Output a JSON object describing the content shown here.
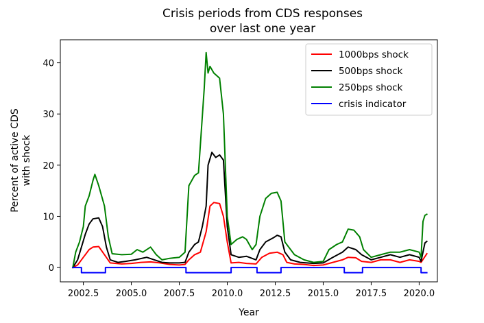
{
  "chart_data": {
    "type": "line",
    "title_lines": [
      "Crisis periods from CDS responses",
      "over last one year"
    ],
    "xlabel": "Year",
    "ylabel_lines": [
      "Percent of active CDS",
      "with shock"
    ],
    "xlim": [
      2001.3,
      2020.95
    ],
    "ylim": [
      -2.8,
      44.5
    ],
    "x_ticks": [
      2002.5,
      2005.0,
      2007.5,
      2010.0,
      2012.5,
      2015.0,
      2017.5,
      2020.0
    ],
    "x_tick_labels": [
      "2002.5",
      "2005.0",
      "2007.5",
      "2010.0",
      "2012.5",
      "2015.0",
      "2017.5",
      "2020.0"
    ],
    "y_ticks": [
      0,
      10,
      20,
      30,
      40
    ],
    "y_tick_labels": [
      "0",
      "10",
      "20",
      "30",
      "40"
    ],
    "legend_position": "top-right",
    "series": [
      {
        "name": "1000bps shock",
        "color": "#ff0000",
        "points": [
          [
            2001.95,
            0
          ],
          [
            2002.2,
            0.5
          ],
          [
            2002.5,
            2.0
          ],
          [
            2002.8,
            3.5
          ],
          [
            2003.0,
            4.0
          ],
          [
            2003.3,
            4.1
          ],
          [
            2003.6,
            2.5
          ],
          [
            2003.9,
            0.9
          ],
          [
            2004.5,
            0.7
          ],
          [
            2005.0,
            0.8
          ],
          [
            2005.5,
            1.0
          ],
          [
            2006.0,
            1.1
          ],
          [
            2006.5,
            0.9
          ],
          [
            2007.0,
            0.6
          ],
          [
            2007.5,
            0.5
          ],
          [
            2007.8,
            0.6
          ],
          [
            2008.0,
            1.5
          ],
          [
            2008.3,
            2.5
          ],
          [
            2008.6,
            3.0
          ],
          [
            2008.9,
            7.0
          ],
          [
            2009.1,
            12.0
          ],
          [
            2009.3,
            12.7
          ],
          [
            2009.6,
            12.5
          ],
          [
            2009.8,
            10.0
          ],
          [
            2010.0,
            5.0
          ],
          [
            2010.2,
            0.9
          ],
          [
            2010.6,
            1.0
          ],
          [
            2011.0,
            0.8
          ],
          [
            2011.5,
            0.7
          ],
          [
            2011.8,
            2.0
          ],
          [
            2012.2,
            2.8
          ],
          [
            2012.6,
            3.0
          ],
          [
            2012.9,
            2.5
          ],
          [
            2013.1,
            1.0
          ],
          [
            2013.5,
            0.7
          ],
          [
            2014.0,
            0.6
          ],
          [
            2014.5,
            0.4
          ],
          [
            2015.0,
            0.5
          ],
          [
            2015.5,
            1.0
          ],
          [
            2016.0,
            1.5
          ],
          [
            2016.3,
            2.0
          ],
          [
            2016.7,
            1.9
          ],
          [
            2017.0,
            1.2
          ],
          [
            2017.5,
            1.0
          ],
          [
            2018.0,
            1.5
          ],
          [
            2018.5,
            1.5
          ],
          [
            2019.0,
            1.0
          ],
          [
            2019.5,
            1.5
          ],
          [
            2020.0,
            1.2
          ],
          [
            2020.1,
            1.0
          ],
          [
            2020.4,
            2.7
          ]
        ]
      },
      {
        "name": "500bps shock",
        "color": "#000000",
        "points": [
          [
            2001.95,
            0
          ],
          [
            2002.2,
            1.5
          ],
          [
            2002.4,
            4.0
          ],
          [
            2002.6,
            6.5
          ],
          [
            2002.8,
            8.5
          ],
          [
            2003.0,
            9.5
          ],
          [
            2003.3,
            9.7
          ],
          [
            2003.5,
            8.0
          ],
          [
            2003.7,
            4.0
          ],
          [
            2003.9,
            1.5
          ],
          [
            2004.3,
            1.0
          ],
          [
            2004.7,
            1.2
          ],
          [
            2005.2,
            1.5
          ],
          [
            2005.8,
            2.0
          ],
          [
            2006.2,
            1.5
          ],
          [
            2006.6,
            1.0
          ],
          [
            2007.0,
            0.9
          ],
          [
            2007.5,
            0.9
          ],
          [
            2007.8,
            1.0
          ],
          [
            2008.0,
            3.0
          ],
          [
            2008.3,
            4.5
          ],
          [
            2008.5,
            5.0
          ],
          [
            2008.7,
            8.0
          ],
          [
            2008.9,
            12.0
          ],
          [
            2009.0,
            20.0
          ],
          [
            2009.2,
            22.5
          ],
          [
            2009.4,
            21.5
          ],
          [
            2009.6,
            22.0
          ],
          [
            2009.8,
            21.0
          ],
          [
            2010.0,
            8.0
          ],
          [
            2010.2,
            2.5
          ],
          [
            2010.6,
            2.0
          ],
          [
            2011.0,
            2.2
          ],
          [
            2011.5,
            1.5
          ],
          [
            2011.7,
            3.5
          ],
          [
            2012.0,
            5.0
          ],
          [
            2012.4,
            5.8
          ],
          [
            2012.6,
            6.3
          ],
          [
            2012.8,
            6.0
          ],
          [
            2013.0,
            3.0
          ],
          [
            2013.3,
            1.5
          ],
          [
            2013.8,
            1.0
          ],
          [
            2014.5,
            0.8
          ],
          [
            2015.0,
            0.9
          ],
          [
            2015.5,
            2.0
          ],
          [
            2016.0,
            3.0
          ],
          [
            2016.3,
            4.0
          ],
          [
            2016.7,
            3.5
          ],
          [
            2017.0,
            2.5
          ],
          [
            2017.5,
            1.5
          ],
          [
            2018.0,
            2.0
          ],
          [
            2018.5,
            2.5
          ],
          [
            2019.0,
            2.0
          ],
          [
            2019.5,
            2.5
          ],
          [
            2020.0,
            2.0
          ],
          [
            2020.1,
            1.2
          ],
          [
            2020.3,
            4.8
          ],
          [
            2020.4,
            5.1
          ]
        ]
      },
      {
        "name": "250bps shock",
        "color": "#008000",
        "points": [
          [
            2001.95,
            0
          ],
          [
            2002.1,
            3.0
          ],
          [
            2002.3,
            5.0
          ],
          [
            2002.5,
            8.0
          ],
          [
            2002.6,
            12.0
          ],
          [
            2002.8,
            14.0
          ],
          [
            2003.0,
            17.0
          ],
          [
            2003.1,
            18.2
          ],
          [
            2003.3,
            16.0
          ],
          [
            2003.6,
            12.0
          ],
          [
            2003.8,
            6.0
          ],
          [
            2004.0,
            2.7
          ],
          [
            2004.5,
            2.5
          ],
          [
            2005.0,
            2.6
          ],
          [
            2005.3,
            3.5
          ],
          [
            2005.6,
            3.0
          ],
          [
            2006.0,
            4.0
          ],
          [
            2006.3,
            2.5
          ],
          [
            2006.6,
            1.5
          ],
          [
            2007.0,
            1.8
          ],
          [
            2007.5,
            2.0
          ],
          [
            2007.8,
            3.0
          ],
          [
            2008.0,
            16.0
          ],
          [
            2008.3,
            18.0
          ],
          [
            2008.5,
            18.5
          ],
          [
            2008.6,
            24.0
          ],
          [
            2008.8,
            35.0
          ],
          [
            2008.9,
            42.0
          ],
          [
            2009.0,
            38.0
          ],
          [
            2009.1,
            39.3
          ],
          [
            2009.3,
            38.0
          ],
          [
            2009.6,
            37.0
          ],
          [
            2009.8,
            30.0
          ],
          [
            2010.0,
            10.0
          ],
          [
            2010.2,
            4.5
          ],
          [
            2010.5,
            5.5
          ],
          [
            2010.8,
            6.0
          ],
          [
            2011.0,
            5.5
          ],
          [
            2011.3,
            3.5
          ],
          [
            2011.5,
            4.5
          ],
          [
            2011.7,
            10.0
          ],
          [
            2012.0,
            13.5
          ],
          [
            2012.3,
            14.5
          ],
          [
            2012.6,
            14.7
          ],
          [
            2012.8,
            13.0
          ],
          [
            2013.0,
            5.0
          ],
          [
            2013.5,
            2.5
          ],
          [
            2014.0,
            1.5
          ],
          [
            2014.5,
            1.0
          ],
          [
            2015.0,
            1.2
          ],
          [
            2015.3,
            3.5
          ],
          [
            2015.7,
            4.5
          ],
          [
            2016.0,
            5.0
          ],
          [
            2016.3,
            7.5
          ],
          [
            2016.6,
            7.3
          ],
          [
            2016.9,
            6.0
          ],
          [
            2017.1,
            3.5
          ],
          [
            2017.5,
            2.0
          ],
          [
            2018.0,
            2.5
          ],
          [
            2018.5,
            3.0
          ],
          [
            2019.0,
            3.0
          ],
          [
            2019.5,
            3.5
          ],
          [
            2019.8,
            3.2
          ],
          [
            2020.0,
            3.0
          ],
          [
            2020.1,
            2.0
          ],
          [
            2020.2,
            9.0
          ],
          [
            2020.3,
            10.2
          ],
          [
            2020.4,
            10.4
          ]
        ]
      },
      {
        "name": "crisis indicator",
        "color": "#0000ff",
        "points": [
          [
            2001.95,
            0
          ],
          [
            2002.4,
            0
          ],
          [
            2002.4,
            -1
          ],
          [
            2003.65,
            -1
          ],
          [
            2003.65,
            0
          ],
          [
            2007.85,
            0
          ],
          [
            2007.85,
            -1
          ],
          [
            2010.2,
            -1
          ],
          [
            2010.2,
            0
          ],
          [
            2011.55,
            0
          ],
          [
            2011.55,
            -1
          ],
          [
            2012.8,
            -1
          ],
          [
            2012.8,
            0
          ],
          [
            2016.1,
            0
          ],
          [
            2016.1,
            -1
          ],
          [
            2017.05,
            -1
          ],
          [
            2017.05,
            0
          ],
          [
            2020.1,
            0
          ],
          [
            2020.1,
            -1
          ],
          [
            2020.4,
            -1
          ]
        ]
      }
    ]
  }
}
